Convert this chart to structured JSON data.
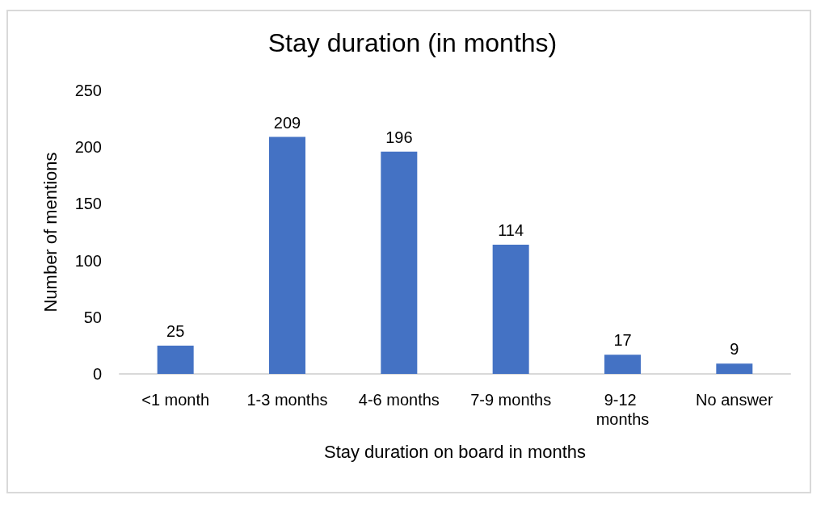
{
  "chart_data": {
    "type": "bar",
    "title": "Stay duration (in months)",
    "xlabel": "Stay duration on board in months",
    "ylabel": "Number of mentions",
    "categories": [
      "<1 month",
      "1-3 months",
      "4-6 months",
      "7-9 months",
      "9-12 months",
      "No answer"
    ],
    "values": [
      25,
      209,
      196,
      114,
      17,
      9
    ],
    "color": "#4472c4",
    "ylim": [
      0,
      250
    ],
    "yticks": [
      0,
      50,
      100,
      150,
      200,
      250
    ],
    "data_labels": true
  }
}
